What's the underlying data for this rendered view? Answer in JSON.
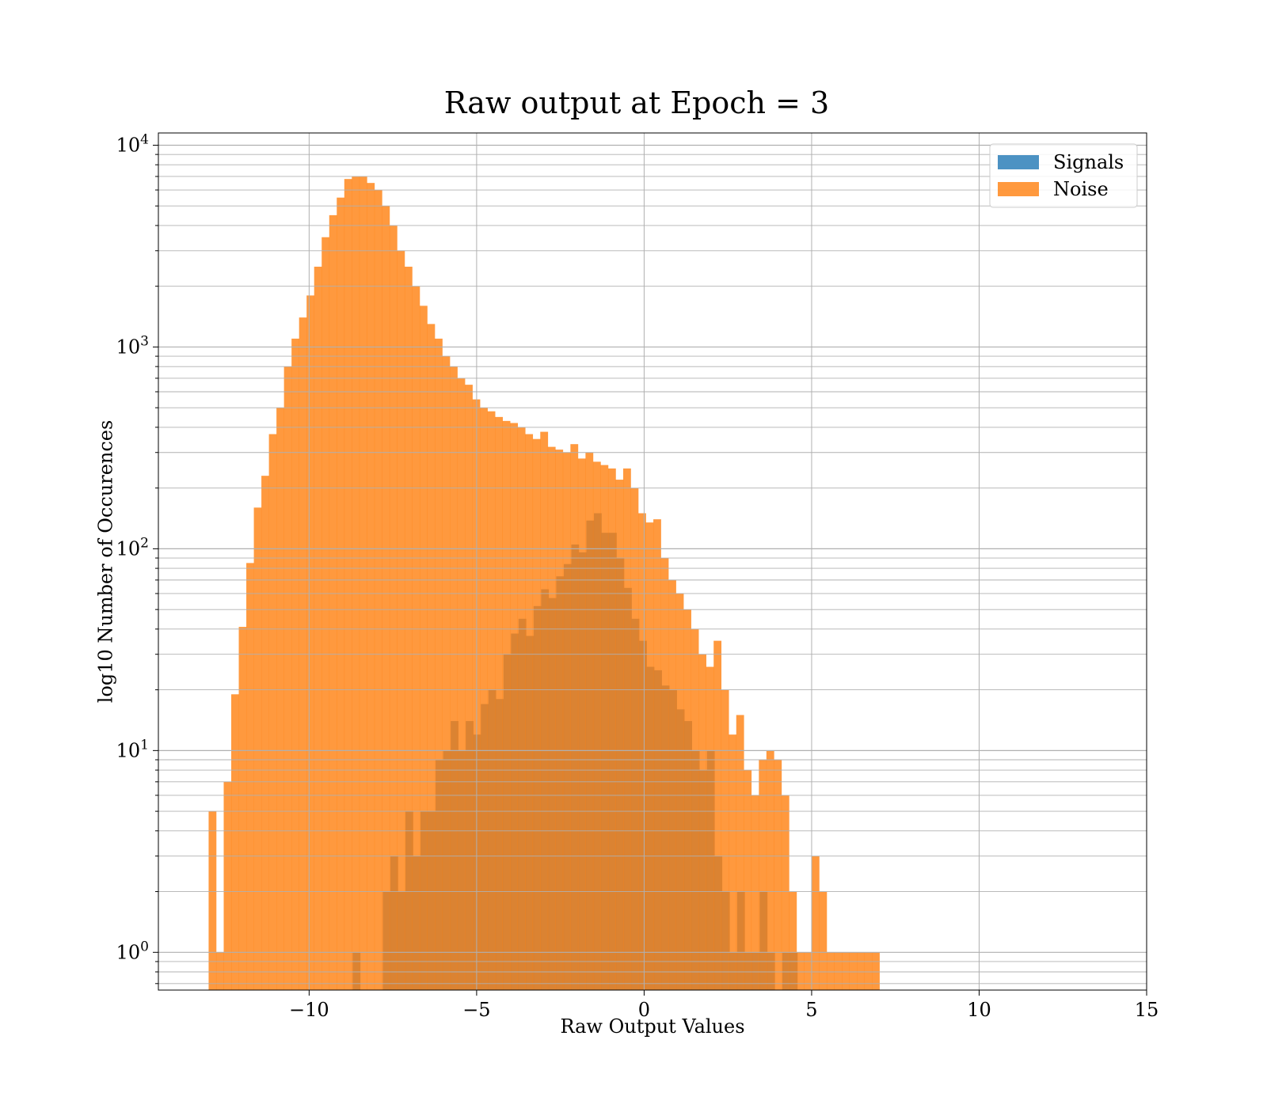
{
  "chart_data": {
    "type": "bar",
    "title": "Raw output at Epoch = 3",
    "xlabel": "Raw Output Values",
    "ylabel": "log10 Number of Occurences",
    "xlim": [
      -14.5,
      15
    ],
    "ylim": [
      0.65,
      11500
    ],
    "yscale": "log",
    "grid": true,
    "legend_placement": "top-right",
    "xticks": [
      -10,
      -5,
      0,
      5,
      10,
      15
    ],
    "xtick_labels": [
      "−10",
      "−5",
      "0",
      "5",
      "10",
      "15"
    ],
    "yticks": [
      1,
      10,
      100,
      1000,
      10000
    ],
    "ytick_labels": [
      {
        "base": "10",
        "exp": "0"
      },
      {
        "base": "10",
        "exp": "1"
      },
      {
        "base": "10",
        "exp": "2"
      },
      {
        "base": "10",
        "exp": "3"
      },
      {
        "base": "10",
        "exp": "4"
      }
    ],
    "series": [
      {
        "name": "Signals",
        "color": "#1f77b4",
        "bin_start": -8.7,
        "bin_width": 0.225,
        "values": [
          1,
          0,
          0,
          0,
          2,
          3,
          2,
          5,
          3,
          5,
          5,
          9,
          10,
          14,
          10,
          14,
          12,
          17,
          20,
          18,
          30,
          38,
          45,
          37,
          52,
          63,
          57,
          73,
          84,
          105,
          96,
          138,
          150,
          120,
          120,
          90,
          64,
          45,
          35,
          26,
          25,
          21,
          20,
          16,
          14,
          10,
          8,
          10,
          3,
          2,
          1,
          2,
          1,
          1,
          2,
          1,
          0,
          1,
          1
        ]
      },
      {
        "name": "Noise",
        "color": "#ff7f0e",
        "bin_start": -13.0,
        "bin_width": 0.225,
        "values": [
          5,
          1,
          7,
          19,
          41,
          85,
          160,
          230,
          370,
          500,
          800,
          1100,
          1400,
          1800,
          2500,
          3500,
          4500,
          5500,
          6800,
          7000,
          7000,
          6500,
          6000,
          5000,
          4000,
          3000,
          2500,
          2000,
          1600,
          1300,
          1100,
          900,
          800,
          700,
          650,
          550,
          500,
          480,
          450,
          430,
          420,
          400,
          370,
          350,
          380,
          320,
          310,
          300,
          330,
          280,
          300,
          270,
          260,
          250,
          220,
          250,
          200,
          150,
          135,
          140,
          90,
          70,
          60,
          50,
          40,
          30,
          26,
          35,
          20,
          12,
          15,
          8,
          6,
          9,
          10,
          9,
          6,
          2,
          1,
          1,
          3,
          2,
          1,
          1,
          1,
          1,
          1,
          1,
          1
        ]
      }
    ]
  }
}
